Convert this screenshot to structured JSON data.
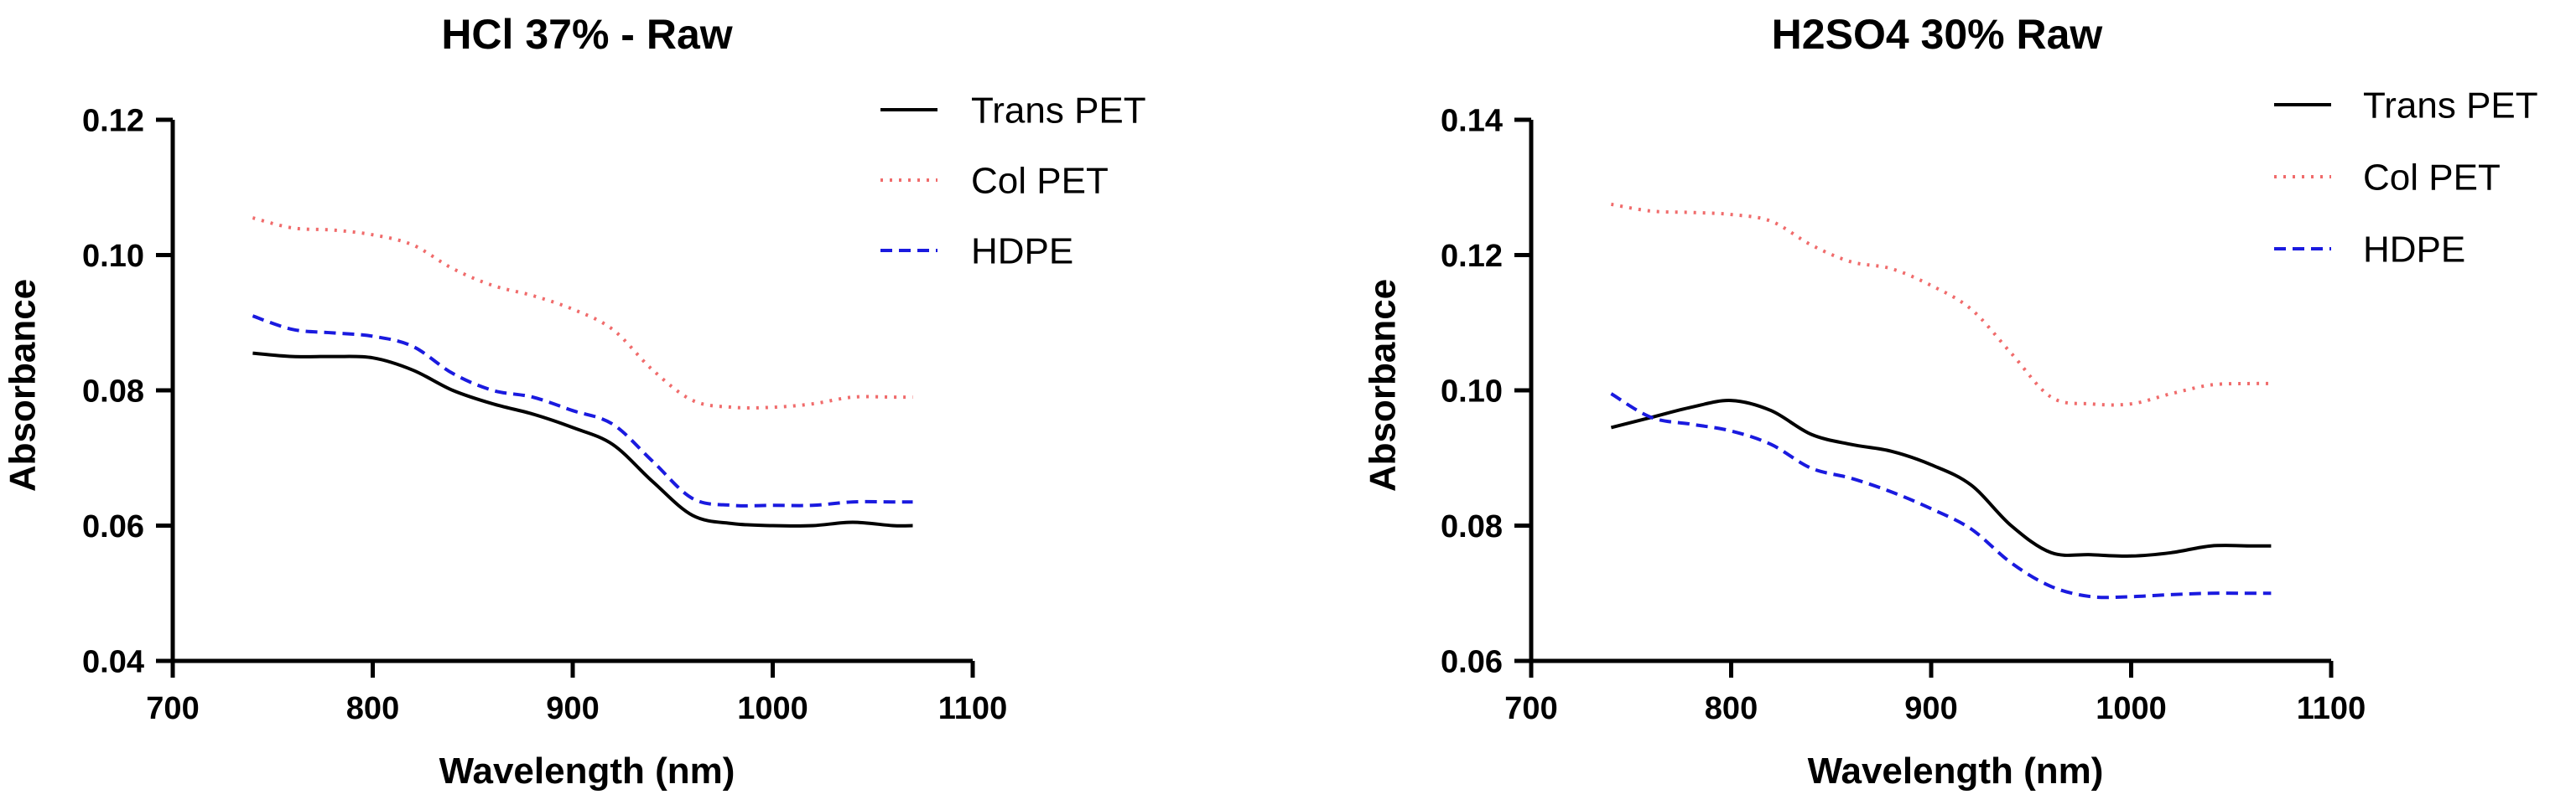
{
  "chart_data": [
    {
      "type": "line",
      "title": "HCl 37% - Raw",
      "xlabel": "Wavelength (nm)",
      "ylabel": "Absorbance",
      "xlim": [
        700,
        1100
      ],
      "ylim": [
        0.04,
        0.12
      ],
      "xticks": [
        700,
        800,
        900,
        1000,
        1100
      ],
      "xtick_labels": [
        "700",
        "800",
        "900",
        "1000",
        "1100"
      ],
      "yticks": [
        0.04,
        0.06,
        0.08,
        0.1,
        0.12
      ],
      "ytick_labels": [
        "0.04",
        "0.06",
        "0.08",
        "0.10",
        "0.12"
      ],
      "grid": false,
      "legend_position": "top-right",
      "x": [
        740,
        760,
        780,
        800,
        820,
        840,
        860,
        880,
        900,
        920,
        940,
        960,
        980,
        1000,
        1020,
        1040,
        1060,
        1070
      ],
      "series": [
        {
          "name": "Trans PET",
          "color": "#000000",
          "dash": "solid",
          "values": [
            0.0855,
            0.085,
            0.085,
            0.0848,
            0.083,
            0.08,
            0.078,
            0.0765,
            0.0745,
            0.072,
            0.0665,
            0.0615,
            0.0603,
            0.06,
            0.06,
            0.0605,
            0.06,
            0.06
          ]
        },
        {
          "name": "Col PET",
          "color": "#f06b6b",
          "dash": "dotted",
          "values": [
            0.1055,
            0.104,
            0.1037,
            0.103,
            0.1015,
            0.098,
            0.0955,
            0.094,
            0.092,
            0.089,
            0.083,
            0.0785,
            0.0775,
            0.0775,
            0.078,
            0.079,
            0.079,
            0.079
          ]
        },
        {
          "name": "HDPE",
          "color": "#1a1adf",
          "dash": "dashed",
          "values": [
            0.091,
            0.089,
            0.0885,
            0.088,
            0.0865,
            0.0825,
            0.08,
            0.079,
            0.077,
            0.075,
            0.0695,
            0.064,
            0.063,
            0.063,
            0.063,
            0.0635,
            0.0635,
            0.0635
          ]
        }
      ]
    },
    {
      "type": "line",
      "title": "H2SO4 30%  Raw",
      "xlabel": "Wavelength (nm)",
      "ylabel": "Absorbance",
      "xlim": [
        700,
        1100
      ],
      "ylim": [
        0.06,
        0.14
      ],
      "xticks": [
        700,
        800,
        900,
        1000,
        1100
      ],
      "xtick_labels": [
        "700",
        "800",
        "900",
        "1000",
        "1100"
      ],
      "yticks": [
        0.06,
        0.08,
        0.1,
        0.12,
        0.14
      ],
      "ytick_labels": [
        "0.06",
        "0.08",
        "0.10",
        "0.12",
        "0.14"
      ],
      "grid": false,
      "legend_position": "top-right",
      "x": [
        740,
        760,
        780,
        800,
        820,
        840,
        860,
        880,
        900,
        920,
        940,
        960,
        980,
        1000,
        1020,
        1040,
        1060,
        1070
      ],
      "series": [
        {
          "name": "Trans PET",
          "color": "#000000",
          "dash": "solid",
          "values": [
            0.0945,
            0.096,
            0.0975,
            0.0985,
            0.097,
            0.0935,
            0.092,
            0.091,
            0.089,
            0.086,
            0.08,
            0.076,
            0.0757,
            0.0755,
            0.076,
            0.077,
            0.077,
            0.077
          ]
        },
        {
          "name": "Col PET",
          "color": "#f06b6b",
          "dash": "dotted",
          "values": [
            0.1275,
            0.1265,
            0.1263,
            0.126,
            0.125,
            0.1215,
            0.119,
            0.118,
            0.1155,
            0.112,
            0.1055,
            0.099,
            0.098,
            0.098,
            0.0995,
            0.1008,
            0.101,
            0.101
          ]
        },
        {
          "name": "HDPE",
          "color": "#1a1adf",
          "dash": "dashed",
          "values": [
            0.0995,
            0.096,
            0.095,
            0.094,
            0.092,
            0.0885,
            0.087,
            0.085,
            0.0825,
            0.0795,
            0.0745,
            0.071,
            0.0695,
            0.0695,
            0.0698,
            0.07,
            0.07,
            0.07
          ]
        }
      ]
    }
  ]
}
